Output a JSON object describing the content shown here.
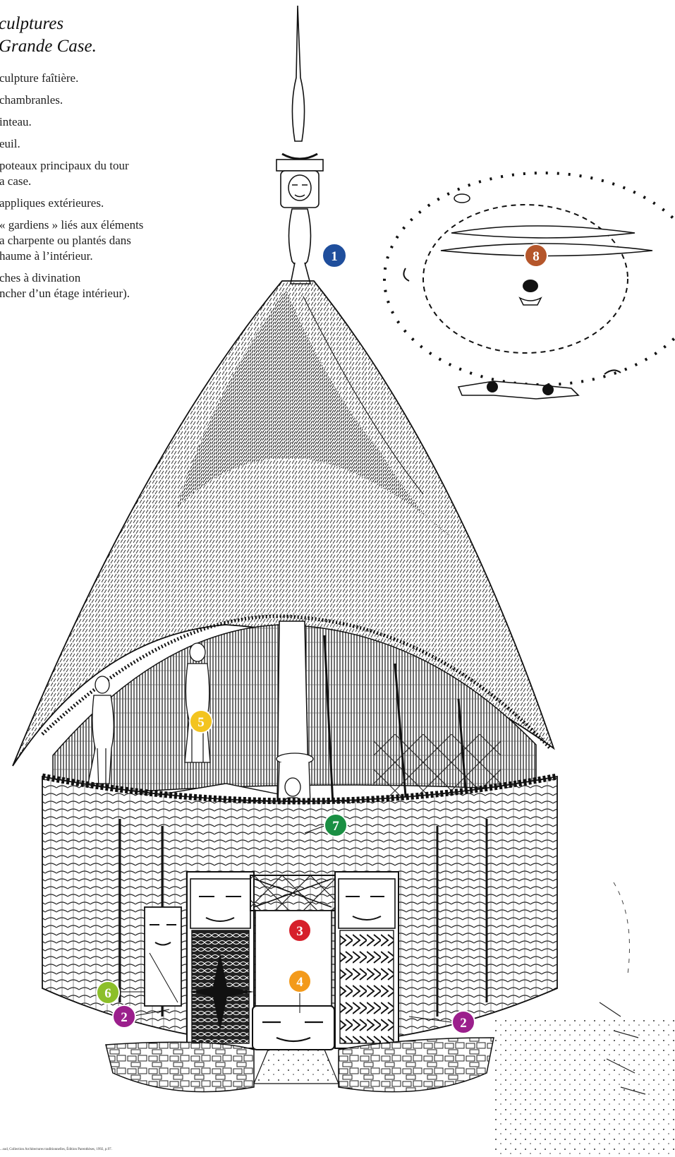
{
  "title_lines": [
    "culptures",
    "Grande Case."
  ],
  "legend": [
    "culpture faîtière.",
    "chambranles.",
    "inteau.",
    "euil.",
    "poteaux principaux du tour\na case.",
    "appliques extérieures.",
    "« gardiens » liés aux éléments\na charpente ou plantés dans\nhaume à l’intérieur.",
    "ches à divination\nncher d’un étage intérieur)."
  ],
  "markers": [
    {
      "id": "marker-1",
      "label": "1",
      "color": "#1f4e9c"
    },
    {
      "id": "marker-2-left",
      "label": "2",
      "color": "#9b1f8c"
    },
    {
      "id": "marker-2-right",
      "label": "2",
      "color": "#9b1f8c"
    },
    {
      "id": "marker-3",
      "label": "3",
      "color": "#d6202b"
    },
    {
      "id": "marker-4",
      "label": "4",
      "color": "#f39a1b"
    },
    {
      "id": "marker-5",
      "label": "5",
      "color": "#f3c41f"
    },
    {
      "id": "marker-6",
      "label": "6",
      "color": "#8cbf2a"
    },
    {
      "id": "marker-7",
      "label": "7",
      "color": "#1a8f43"
    },
    {
      "id": "marker-8",
      "label": "8",
      "color": "#b5562b"
    }
  ],
  "credit": "...sud, Collection Architectures traditionnelles, Édition Parenthèses, 1992, p.97."
}
